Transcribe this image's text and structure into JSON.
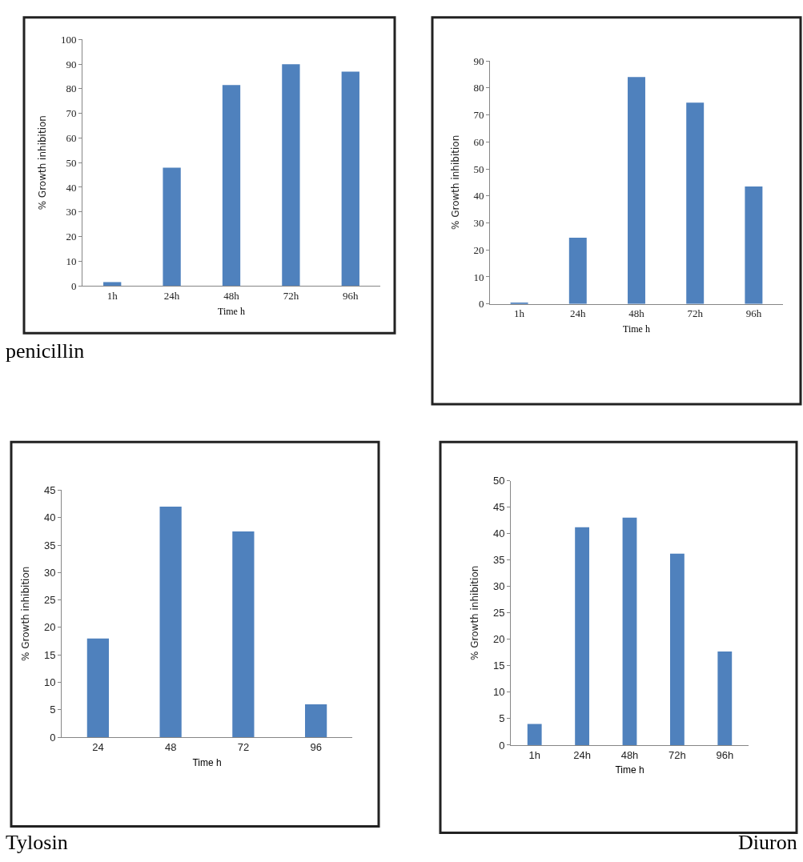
{
  "chart_data": [
    {
      "type": "bar",
      "xlabel": "Time h",
      "ylabel": "% Growth inhibition",
      "categories": [
        "1h",
        "24h",
        "48h",
        "72h",
        "96h"
      ],
      "values": [
        1.5,
        48,
        81.5,
        90,
        87
      ],
      "color": "#4f81bd",
      "ylim": [
        0,
        100
      ],
      "yticks": [
        0,
        10,
        20,
        30,
        40,
        50,
        60,
        70,
        80,
        90,
        100
      ],
      "annotations": [
        "penicillin"
      ]
    },
    {
      "type": "bar",
      "xlabel": "Time h",
      "ylabel": "% Growth inhibition",
      "categories": [
        "1h",
        "24h",
        "48h",
        "72h",
        "96h"
      ],
      "values": [
        0.3,
        24.5,
        84,
        74.5,
        43.5
      ],
      "color": "#4f81bd",
      "ylim": [
        0,
        90
      ],
      "yticks": [
        0,
        10,
        20,
        30,
        40,
        50,
        60,
        70,
        80,
        90
      ]
    },
    {
      "type": "bar",
      "xlabel": "Time h",
      "ylabel": "% Growth inhibition",
      "categories": [
        "24",
        "48",
        "72",
        "96"
      ],
      "values": [
        18,
        42,
        37.5,
        6
      ],
      "color": "#4f81bd",
      "ylim": [
        0,
        45
      ],
      "yticks": [
        0,
        5,
        10,
        15,
        20,
        25,
        30,
        35,
        40,
        45
      ],
      "annotations": [
        "Tylosin"
      ]
    },
    {
      "type": "bar",
      "xlabel": "Time h",
      "ylabel": "% Growth inhibition",
      "categories": [
        "1h",
        "24h",
        "48h",
        "72h",
        "96h"
      ],
      "values": [
        4,
        41.2,
        43,
        36.2,
        17.7
      ],
      "color": "#4f81bd",
      "ylim": [
        0,
        50
      ],
      "yticks": [
        0,
        5,
        10,
        15,
        20,
        25,
        30,
        35,
        40,
        45,
        50
      ],
      "annotations": [
        "Diuron"
      ]
    }
  ]
}
